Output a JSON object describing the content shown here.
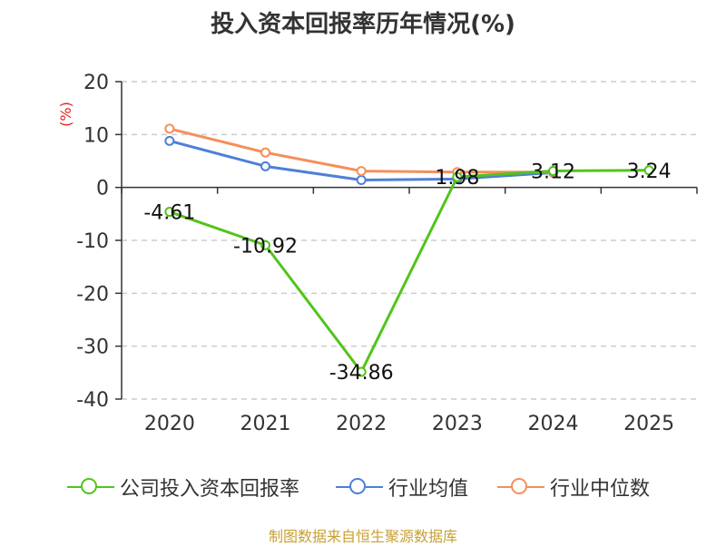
{
  "title": "投入资本回报率历年情况(%)",
  "source": "制图数据来自恒生聚源数据库",
  "chart_data": {
    "type": "line",
    "categories": [
      "2020",
      "2021",
      "2022",
      "2023",
      "2024",
      "2025"
    ],
    "ylabel": "(%)",
    "ylim": [
      -40,
      20
    ],
    "yticks": [
      20,
      10,
      0,
      -10,
      -20,
      -30,
      -40
    ],
    "grid": true,
    "legend_position": "bottom",
    "series": [
      {
        "name": "公司投入资本回报率",
        "color": "#52c41a",
        "values": [
          -4.61,
          -10.92,
          -34.86,
          1.98,
          3.12,
          3.24
        ],
        "labels": [
          "-4.61",
          "-10.92",
          "-34.86",
          "1.98",
          "3.12",
          "3.24"
        ]
      },
      {
        "name": "行业均值",
        "color": "#4e7fd8",
        "values": [
          8.8,
          4.0,
          1.4,
          1.6,
          2.8,
          null
        ]
      },
      {
        "name": "行业中位数",
        "color": "#f58f5a",
        "values": [
          11.1,
          6.6,
          3.1,
          2.9,
          2.9,
          null
        ]
      }
    ]
  }
}
